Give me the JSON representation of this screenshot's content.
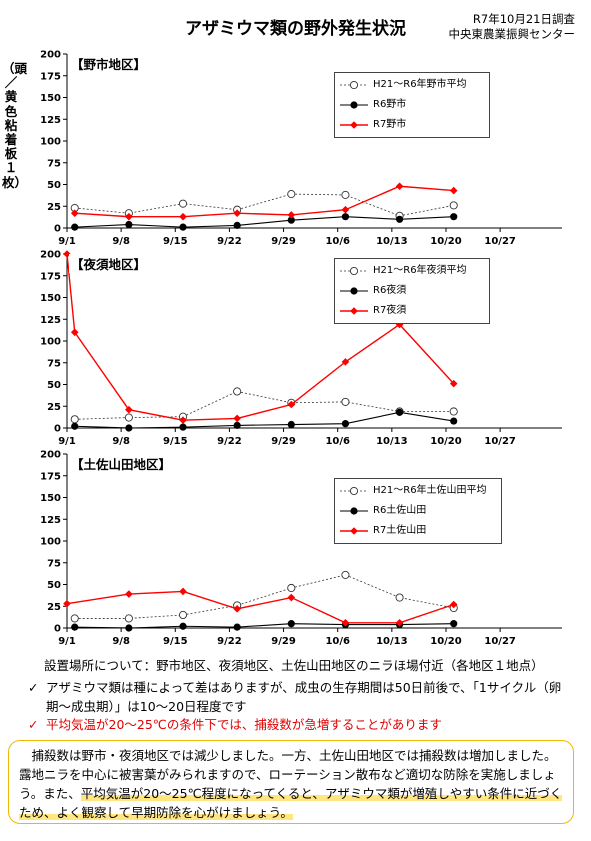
{
  "header": {
    "title": "アザミウマ類の野外発生状況",
    "survey_date": "R7年10月21日調査",
    "org": "中央東農業振興センター"
  },
  "y_unit_label": "（頭／黄色粘着板１枚）",
  "colors": {
    "avg": "#333333",
    "r6": "#000000",
    "r7": "#ff0000"
  },
  "chart_data": [
    {
      "type": "line",
      "title": "【野市地区】",
      "x": [
        "9/1",
        "9/8",
        "9/15",
        "9/22",
        "9/29",
        "10/6",
        "10/13",
        "10/20",
        "10/27"
      ],
      "yticks": [
        0,
        25,
        50,
        75,
        100,
        125,
        150,
        175,
        200
      ],
      "ylim": [
        0,
        200
      ],
      "series": [
        {
          "name": "H21～R6年野市平均",
          "x": [
            "9/2",
            "9/9",
            "9/16",
            "9/23",
            "9/30",
            "10/7",
            "10/14",
            "10/21"
          ],
          "values": [
            23,
            17,
            28,
            21,
            39,
            38,
            14,
            26
          ]
        },
        {
          "name": "R6野市",
          "x": [
            "9/2",
            "9/9",
            "9/16",
            "9/23",
            "9/30",
            "10/7",
            "10/14",
            "10/21"
          ],
          "values": [
            1,
            4,
            1,
            3,
            9,
            13,
            10,
            13
          ]
        },
        {
          "name": "R7野市",
          "x": [
            "9/2",
            "9/9",
            "9/16",
            "9/23",
            "9/30",
            "10/7",
            "10/14",
            "10/21"
          ],
          "values": [
            17,
            13,
            13,
            17,
            15,
            21,
            48,
            43
          ]
        }
      ]
    },
    {
      "type": "line",
      "title": "【夜須地区】",
      "x": [
        "9/1",
        "9/8",
        "9/15",
        "9/22",
        "9/29",
        "10/6",
        "10/13",
        "10/20",
        "10/27"
      ],
      "yticks": [
        0,
        25,
        50,
        75,
        100,
        125,
        150,
        175,
        200
      ],
      "ylim": [
        0,
        200
      ],
      "series": [
        {
          "name": "H21～R6年夜須平均",
          "x": [
            "9/2",
            "9/9",
            "9/16",
            "9/23",
            "9/30",
            "10/7",
            "10/14",
            "10/21"
          ],
          "values": [
            10,
            12,
            13,
            42,
            29,
            30,
            19,
            19
          ]
        },
        {
          "name": "R6夜須",
          "x": [
            "9/2",
            "9/9",
            "9/16",
            "9/23",
            "9/30",
            "10/7",
            "10/14",
            "10/21"
          ],
          "values": [
            2,
            0,
            1,
            3,
            4,
            5,
            18,
            8
          ]
        },
        {
          "name": "R7夜須",
          "x": [
            "9/1",
            "9/2",
            "9/9",
            "9/16",
            "9/23",
            "9/30",
            "10/7",
            "10/14",
            "10/21"
          ],
          "values": [
            200,
            110,
            21,
            9,
            11,
            27,
            76,
            119,
            51
          ]
        }
      ]
    },
    {
      "type": "line",
      "title": "【土佐山田地区】",
      "x": [
        "9/1",
        "9/8",
        "9/15",
        "9/22",
        "9/29",
        "10/6",
        "10/13",
        "10/20",
        "10/27"
      ],
      "yticks": [
        0,
        25,
        50,
        75,
        100,
        125,
        150,
        175,
        200
      ],
      "ylim": [
        0,
        200
      ],
      "series": [
        {
          "name": "H21～R6年土佐山田平均",
          "x": [
            "9/2",
            "9/9",
            "9/16",
            "9/23",
            "9/30",
            "10/7",
            "10/14",
            "10/21"
          ],
          "values": [
            11,
            11,
            15,
            26,
            46,
            61,
            35,
            23
          ]
        },
        {
          "name": "R6土佐山田",
          "x": [
            "9/2",
            "9/9",
            "9/16",
            "9/23",
            "9/30",
            "10/7",
            "10/14",
            "10/21"
          ],
          "values": [
            1,
            0,
            2,
            1,
            5,
            4,
            4,
            5
          ]
        },
        {
          "name": "R7土佐山田",
          "x": [
            "9/1",
            "9/9",
            "9/16",
            "9/23",
            "9/30",
            "10/7",
            "10/14",
            "10/21"
          ],
          "values": [
            28,
            39,
            42,
            22,
            35,
            6,
            6,
            27
          ]
        }
      ]
    }
  ],
  "location_note": "設置場所について：野市地区、夜須地区、土佐山田地区のニラほ場付近（各地区１地点）",
  "notes": [
    {
      "mark": "✓",
      "text": "アザミウマ類は種によって差はありますが、成虫の生存期間は50日前後で、「1サイクル（卵期～成虫期）」は10～20日程度です"
    },
    {
      "mark": "✓",
      "text": "平均気温が20～25℃の条件下では、捕殺数が急増することがあります"
    }
  ],
  "summary": {
    "part1": "　捕殺数は野市・夜須地区では減少しました。一方、土佐山田地区では捕殺数は増加しました。露地ニラを中心に被害葉がみられますので、ローテーション散布など適切な防除を実施しましょう。また、",
    "part2": "平均気温が20～25℃程度になってくると、アザミウマ類が増殖しやすい条件に近づくため、よく観察して早期防除を心がけましょう。"
  }
}
